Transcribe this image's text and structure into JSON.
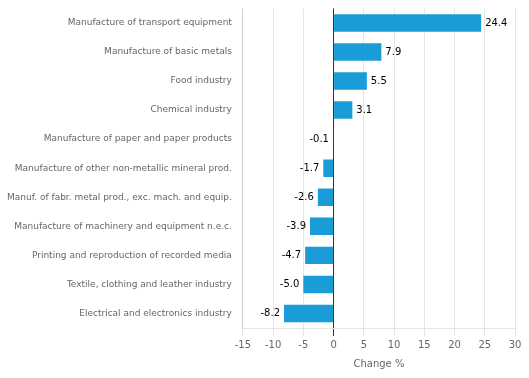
{
  "chart_data": {
    "type": "bar",
    "orientation": "horizontal",
    "categories": [
      "Electrical and electronics industry",
      "Textile, clothing and leather industry",
      "Printing and reproduction of recorded media",
      "Manufacture of machinery and equipment n.e.c.",
      "Manuf. of fabr. metal prod., exc. mach. and equip.",
      "Manufacture of other non-metallic mineral prod.",
      "Manufacture of paper and paper products",
      "Chemical industry",
      "Food industry",
      "Manufacture of basic metals",
      "Manufacture of transport equipment"
    ],
    "values": [
      -8.2,
      -5.0,
      -4.7,
      -3.9,
      -2.6,
      -1.7,
      -0.1,
      3.1,
      5.5,
      7.9,
      24.4
    ],
    "value_labels": [
      "-8.2",
      "-5.0",
      "-4.7",
      "-3.9",
      "-2.6",
      "-1.7",
      "-0.1",
      "3.1",
      "5.5",
      "7.9",
      "24.4"
    ],
    "data_labels": true,
    "color": "#1a9cd8",
    "xlabel": "Change %",
    "xlim": [
      -15,
      30
    ],
    "xticks": [
      -15,
      -10,
      -5,
      0,
      5,
      10,
      15,
      20,
      25,
      30
    ],
    "grid": true
  }
}
